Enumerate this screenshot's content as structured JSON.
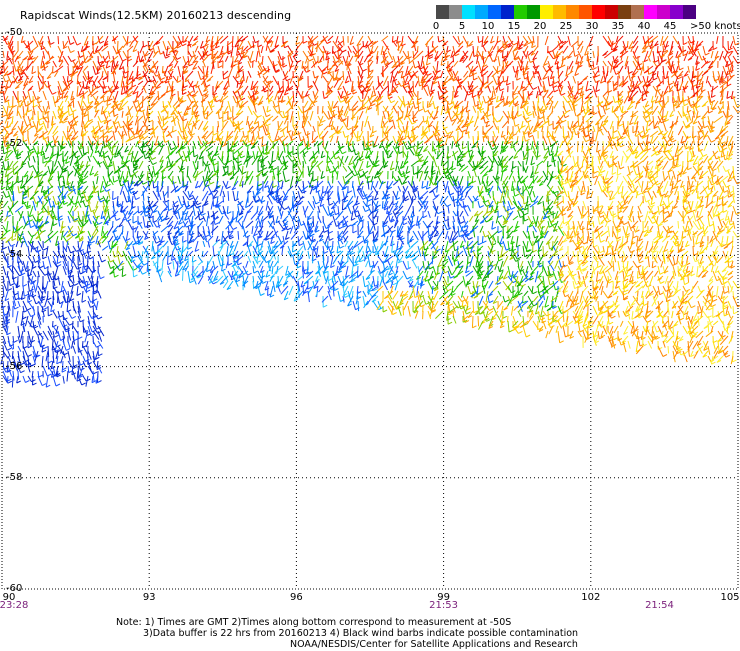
{
  "title": "Rapidscat Winds(12.5KM) 20160213 descending",
  "legend": {
    "colors": [
      "#4a4a4a",
      "#8c8c8c",
      "#00e0ff",
      "#00aaff",
      "#0066ff",
      "#0022cc",
      "#22cc00",
      "#009900",
      "#ffee00",
      "#ffbb00",
      "#ff8800",
      "#ff5500",
      "#ff0000",
      "#cc0000",
      "#7a3f10",
      "#b07050",
      "#ff00ff",
      "#cc00cc",
      "#8800cc",
      "#4b0082"
    ],
    "ticks": [
      "0",
      "5",
      "10",
      "15",
      "20",
      "25",
      "30",
      "35",
      "40",
      "45",
      ">50 knots"
    ]
  },
  "axes": {
    "lat_labels": [
      "-50",
      "-52",
      "-54",
      "-56",
      "-58",
      "-60"
    ],
    "lat_values": [
      -50,
      -52,
      -54,
      -56,
      -58,
      -60
    ],
    "lon_labels": [
      "90",
      "93",
      "96",
      "99",
      "102",
      "105"
    ],
    "lon_values": [
      90,
      93,
      96,
      99,
      102,
      105
    ],
    "time_labels": [
      {
        "lon": 90,
        "text": "23:28"
      },
      {
        "lon": 99,
        "text": "21:53"
      },
      {
        "lon": 103.4,
        "text": "21:54"
      }
    ]
  },
  "notes": {
    "line1": "Note: 1) Times are GMT 2)Times along bottom correspond to measurement at -50S",
    "line2": "3)Data buffer is 22 hrs from 20160213 4) Black wind barbs indicate possible contamination",
    "line3": "NOAA/NESDIS/Center for Satellite Applications and Research"
  }
}
